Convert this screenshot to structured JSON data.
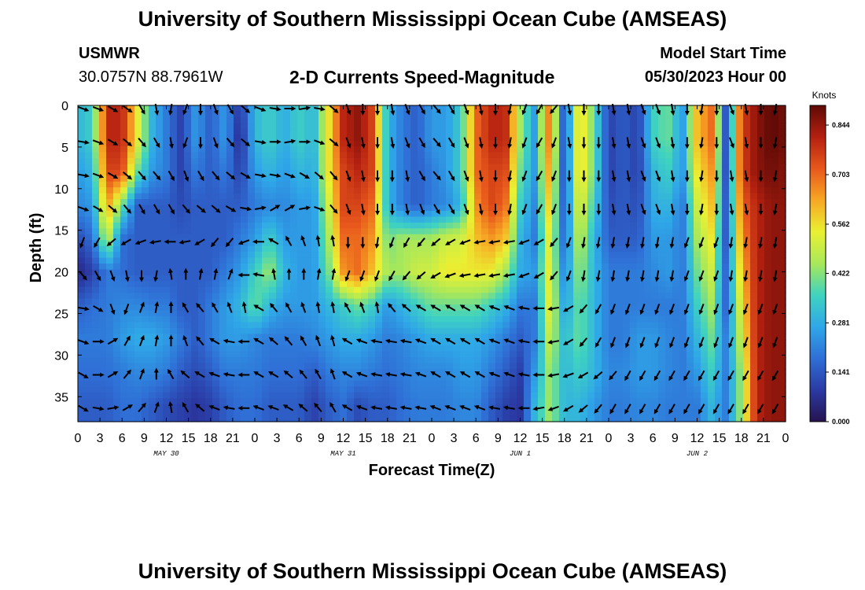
{
  "header": {
    "title": "University of Southern Mississippi Ocean Cube (AMSEAS)",
    "station": "USMWR",
    "coords": "30.0757N  88.7961W",
    "subtitle": "2-D Currents Speed-Magnitude",
    "model_start_label": "Model Start Time",
    "model_start_value": "05/30/2023 Hour 00"
  },
  "footer": {
    "title": "University of Southern Mississippi Ocean Cube (AMSEAS)"
  },
  "chart_data": {
    "type": "heatmap",
    "title": "2-D Currents Speed-Magnitude",
    "xlabel": "Forecast Time(Z)",
    "ylabel": "Depth (ft)",
    "x_tick_labels": [
      "0",
      "3",
      "6",
      "9",
      "12",
      "15",
      "18",
      "21",
      "0",
      "3",
      "6",
      "9",
      "12",
      "15",
      "18",
      "21",
      "0",
      "3",
      "6",
      "9",
      "12",
      "15",
      "18",
      "21",
      "0",
      "3",
      "6",
      "9",
      "12",
      "15",
      "18",
      "21",
      "0"
    ],
    "x_range_hours": [
      0,
      96
    ],
    "date_labels": [
      {
        "label": "MAY 30",
        "hour": 12
      },
      {
        "label": "MAY 31",
        "hour": 36
      },
      {
        "label": "JUN 1",
        "hour": 60
      },
      {
        "label": "JUN 2",
        "hour": 84
      }
    ],
    "y_ticks": [
      0,
      5,
      10,
      15,
      20,
      25,
      30,
      35
    ],
    "y_tick_labels": [
      "0",
      "5",
      "10",
      "15",
      "20",
      "25",
      "30",
      "35"
    ],
    "y_range_ft": [
      0,
      38
    ],
    "colorbar": {
      "unit": "Knots",
      "ticks": [
        0.0,
        0.141,
        0.281,
        0.422,
        0.562,
        0.703,
        0.844
      ],
      "tick_labels": [
        "0.000",
        "0.141",
        "0.281",
        "0.422",
        "0.562",
        "0.703",
        "0.844"
      ],
      "range": [
        0,
        0.9
      ],
      "colors": [
        "#26134f",
        "#2b3aa4",
        "#2f6fd6",
        "#2fa7e8",
        "#3fd3c0",
        "#a8e85a",
        "#eaf032",
        "#f7a824",
        "#e8581c",
        "#b42010",
        "#5e0a06"
      ]
    },
    "grid_times_hours": [
      0,
      2,
      4,
      6,
      8,
      10,
      12,
      14,
      16,
      18,
      20,
      22,
      24,
      26,
      28,
      30,
      32,
      34,
      36,
      38,
      40,
      42,
      44,
      46,
      48,
      50,
      52,
      54,
      56,
      58,
      60,
      62,
      64,
      66,
      68,
      70,
      72,
      74,
      76,
      78,
      80,
      82,
      84,
      86,
      88,
      90,
      92,
      94,
      96
    ],
    "grid_depths_ft": [
      0,
      4,
      8,
      12,
      16,
      20,
      24,
      28,
      32,
      36,
      38
    ],
    "speed_knots": [
      [
        0.3,
        0.35,
        0.8,
        0.8,
        0.55,
        0.3,
        0.2,
        0.1,
        0.25,
        0.15,
        0.25,
        0.08,
        0.3,
        0.35,
        0.28,
        0.35,
        0.3,
        0.55,
        0.8,
        0.85,
        0.75,
        0.3,
        0.2,
        0.15,
        0.25,
        0.25,
        0.35,
        0.7,
        0.8,
        0.8,
        0.45,
        0.25,
        0.7,
        0.1,
        0.6,
        0.4,
        0.1,
        0.15,
        0.1,
        0.35,
        0.4,
        0.25,
        0.6,
        0.7,
        0.1,
        0.75,
        0.85,
        0.9,
        0.88
      ],
      [
        0.3,
        0.35,
        0.8,
        0.8,
        0.55,
        0.3,
        0.2,
        0.1,
        0.25,
        0.15,
        0.25,
        0.05,
        0.3,
        0.35,
        0.28,
        0.35,
        0.3,
        0.55,
        0.8,
        0.85,
        0.75,
        0.3,
        0.2,
        0.15,
        0.25,
        0.25,
        0.35,
        0.7,
        0.8,
        0.8,
        0.45,
        0.25,
        0.7,
        0.1,
        0.6,
        0.4,
        0.1,
        0.15,
        0.1,
        0.35,
        0.4,
        0.25,
        0.6,
        0.7,
        0.1,
        0.75,
        0.85,
        0.9,
        0.88
      ],
      [
        0.25,
        0.3,
        0.75,
        0.75,
        0.4,
        0.25,
        0.2,
        0.1,
        0.2,
        0.15,
        0.2,
        0.1,
        0.25,
        0.3,
        0.25,
        0.3,
        0.28,
        0.55,
        0.75,
        0.8,
        0.75,
        0.3,
        0.2,
        0.15,
        0.2,
        0.25,
        0.35,
        0.7,
        0.75,
        0.75,
        0.4,
        0.25,
        0.65,
        0.1,
        0.6,
        0.4,
        0.1,
        0.15,
        0.1,
        0.3,
        0.35,
        0.25,
        0.55,
        0.65,
        0.1,
        0.75,
        0.85,
        0.88,
        0.86
      ],
      [
        0.22,
        0.25,
        0.65,
        0.4,
        0.15,
        0.15,
        0.15,
        0.12,
        0.15,
        0.15,
        0.15,
        0.15,
        0.2,
        0.22,
        0.22,
        0.25,
        0.25,
        0.5,
        0.75,
        0.75,
        0.7,
        0.3,
        0.2,
        0.15,
        0.2,
        0.22,
        0.3,
        0.65,
        0.75,
        0.7,
        0.35,
        0.22,
        0.6,
        0.12,
        0.55,
        0.35,
        0.12,
        0.15,
        0.12,
        0.28,
        0.3,
        0.2,
        0.5,
        0.6,
        0.12,
        0.7,
        0.8,
        0.85,
        0.85
      ],
      [
        0.12,
        0.18,
        0.5,
        0.18,
        0.15,
        0.15,
        0.15,
        0.15,
        0.15,
        0.15,
        0.15,
        0.2,
        0.25,
        0.35,
        0.25,
        0.25,
        0.25,
        0.45,
        0.7,
        0.7,
        0.65,
        0.4,
        0.45,
        0.45,
        0.45,
        0.5,
        0.5,
        0.6,
        0.65,
        0.6,
        0.3,
        0.2,
        0.55,
        0.15,
        0.5,
        0.3,
        0.15,
        0.15,
        0.15,
        0.25,
        0.25,
        0.2,
        0.45,
        0.55,
        0.12,
        0.65,
        0.8,
        0.85,
        0.85
      ],
      [
        0.05,
        0.1,
        0.2,
        0.18,
        0.15,
        0.15,
        0.15,
        0.15,
        0.15,
        0.15,
        0.2,
        0.25,
        0.35,
        0.45,
        0.3,
        0.25,
        0.25,
        0.4,
        0.65,
        0.7,
        0.6,
        0.45,
        0.45,
        0.5,
        0.5,
        0.55,
        0.55,
        0.55,
        0.55,
        0.45,
        0.28,
        0.25,
        0.55,
        0.2,
        0.45,
        0.3,
        0.2,
        0.2,
        0.2,
        0.22,
        0.25,
        0.2,
        0.4,
        0.5,
        0.15,
        0.6,
        0.8,
        0.85,
        0.85
      ],
      [
        0.15,
        0.18,
        0.2,
        0.22,
        0.22,
        0.2,
        0.2,
        0.15,
        0.15,
        0.2,
        0.25,
        0.3,
        0.4,
        0.3,
        0.25,
        0.25,
        0.25,
        0.3,
        0.35,
        0.4,
        0.35,
        0.25,
        0.3,
        0.35,
        0.4,
        0.4,
        0.4,
        0.4,
        0.35,
        0.3,
        0.2,
        0.2,
        0.55,
        0.25,
        0.4,
        0.3,
        0.2,
        0.2,
        0.2,
        0.2,
        0.2,
        0.2,
        0.35,
        0.45,
        0.15,
        0.55,
        0.8,
        0.85,
        0.85
      ],
      [
        0.2,
        0.2,
        0.2,
        0.25,
        0.28,
        0.28,
        0.25,
        0.2,
        0.15,
        0.2,
        0.25,
        0.25,
        0.22,
        0.2,
        0.2,
        0.2,
        0.22,
        0.25,
        0.28,
        0.28,
        0.25,
        0.2,
        0.22,
        0.25,
        0.28,
        0.28,
        0.28,
        0.28,
        0.25,
        0.2,
        0.15,
        0.2,
        0.5,
        0.3,
        0.4,
        0.3,
        0.2,
        0.2,
        0.25,
        0.25,
        0.22,
        0.2,
        0.3,
        0.4,
        0.2,
        0.5,
        0.8,
        0.85,
        0.85
      ],
      [
        0.18,
        0.18,
        0.18,
        0.2,
        0.22,
        0.22,
        0.2,
        0.15,
        0.12,
        0.15,
        0.2,
        0.2,
        0.2,
        0.18,
        0.18,
        0.18,
        0.15,
        0.2,
        0.22,
        0.22,
        0.2,
        0.18,
        0.2,
        0.22,
        0.22,
        0.22,
        0.25,
        0.25,
        0.2,
        0.15,
        0.1,
        0.25,
        0.45,
        0.3,
        0.35,
        0.3,
        0.22,
        0.22,
        0.25,
        0.25,
        0.22,
        0.2,
        0.25,
        0.35,
        0.2,
        0.45,
        0.8,
        0.85,
        0.85
      ],
      [
        0.15,
        0.15,
        0.15,
        0.18,
        0.18,
        0.15,
        0.12,
        0.1,
        0.08,
        0.1,
        0.15,
        0.18,
        0.18,
        0.15,
        0.15,
        0.15,
        0.1,
        0.15,
        0.18,
        0.12,
        0.15,
        0.15,
        0.18,
        0.2,
        0.2,
        0.2,
        0.22,
        0.22,
        0.15,
        0.1,
        0.08,
        0.3,
        0.45,
        0.3,
        0.3,
        0.25,
        0.2,
        0.2,
        0.22,
        0.22,
        0.2,
        0.2,
        0.2,
        0.3,
        0.2,
        0.45,
        0.8,
        0.85,
        0.85
      ],
      [
        0.15,
        0.15,
        0.15,
        0.18,
        0.18,
        0.15,
        0.12,
        0.1,
        0.08,
        0.1,
        0.15,
        0.18,
        0.18,
        0.15,
        0.15,
        0.15,
        0.1,
        0.15,
        0.18,
        0.12,
        0.15,
        0.15,
        0.18,
        0.2,
        0.2,
        0.2,
        0.22,
        0.22,
        0.15,
        0.1,
        0.08,
        0.3,
        0.45,
        0.3,
        0.3,
        0.25,
        0.2,
        0.2,
        0.22,
        0.22,
        0.2,
        0.2,
        0.2,
        0.3,
        0.2,
        0.45,
        0.8,
        0.85,
        0.85
      ]
    ],
    "vector_rows_depth_ft": [
      0,
      4,
      8,
      12,
      16,
      20,
      24,
      28,
      32,
      36
    ],
    "vector_cols_hours": [
      0,
      2,
      4,
      6,
      8,
      10,
      12,
      14,
      16,
      18,
      20,
      22,
      24,
      26,
      28,
      30,
      32,
      34,
      36,
      38,
      40,
      42,
      44,
      46,
      48,
      50,
      52,
      54,
      56,
      58,
      60,
      62,
      64,
      66,
      68,
      70,
      72,
      74,
      76,
      78,
      80,
      82,
      84,
      86,
      88,
      90,
      92,
      94
    ],
    "vector_directions_deg_from_north": [
      [
        110,
        110,
        120,
        125,
        150,
        170,
        190,
        200,
        180,
        160,
        150,
        130,
        110,
        100,
        90,
        80,
        100,
        130,
        160,
        180,
        180,
        170,
        160,
        150,
        140,
        150,
        160,
        170,
        180,
        190,
        200,
        210,
        220,
        170,
        180,
        180,
        170,
        170,
        160,
        160,
        170,
        180,
        190,
        180,
        160,
        170,
        180,
        190
      ],
      [
        100,
        110,
        120,
        130,
        140,
        150,
        170,
        200,
        180,
        160,
        140,
        130,
        100,
        90,
        80,
        90,
        110,
        130,
        160,
        170,
        180,
        170,
        160,
        150,
        140,
        150,
        160,
        170,
        180,
        190,
        200,
        210,
        200,
        170,
        180,
        180,
        170,
        170,
        160,
        160,
        170,
        180,
        190,
        180,
        160,
        170,
        180,
        190
      ],
      [
        100,
        110,
        120,
        130,
        140,
        140,
        150,
        160,
        150,
        140,
        130,
        120,
        100,
        100,
        110,
        120,
        130,
        140,
        160,
        170,
        180,
        180,
        170,
        150,
        140,
        150,
        160,
        170,
        180,
        190,
        200,
        210,
        200,
        180,
        180,
        180,
        170,
        170,
        160,
        160,
        170,
        180,
        190,
        180,
        170,
        170,
        180,
        190
      ],
      [
        110,
        120,
        130,
        140,
        150,
        150,
        150,
        140,
        130,
        130,
        120,
        100,
        80,
        60,
        60,
        80,
        110,
        140,
        160,
        170,
        180,
        180,
        170,
        160,
        150,
        150,
        160,
        170,
        180,
        190,
        200,
        210,
        200,
        180,
        180,
        180,
        170,
        170,
        160,
        160,
        170,
        180,
        190,
        180,
        170,
        170,
        180,
        190
      ],
      [
        200,
        210,
        230,
        240,
        250,
        260,
        270,
        260,
        240,
        220,
        220,
        250,
        270,
        300,
        330,
        340,
        350,
        350,
        180,
        180,
        190,
        200,
        210,
        220,
        230,
        240,
        250,
        260,
        260,
        260,
        250,
        240,
        220,
        200,
        190,
        190,
        190,
        190,
        190,
        190,
        190,
        200,
        200,
        200,
        190,
        190,
        190,
        190
      ],
      [
        140,
        150,
        160,
        170,
        180,
        190,
        350,
        0,
        10,
        10,
        20,
        270,
        280,
        350,
        0,
        0,
        10,
        10,
        200,
        200,
        200,
        210,
        220,
        230,
        240,
        250,
        260,
        260,
        260,
        260,
        250,
        240,
        220,
        200,
        190,
        190,
        190,
        190,
        190,
        190,
        190,
        200,
        200,
        200,
        190,
        190,
        190,
        190
      ],
      [
        100,
        120,
        160,
        200,
        20,
        10,
        0,
        330,
        320,
        330,
        340,
        350,
        300,
        320,
        330,
        340,
        350,
        350,
        330,
        340,
        350,
        320,
        310,
        300,
        300,
        300,
        300,
        300,
        290,
        290,
        280,
        270,
        260,
        240,
        220,
        210,
        200,
        200,
        200,
        200,
        200,
        200,
        200,
        200,
        200,
        200,
        200,
        200
      ],
      [
        110,
        90,
        60,
        30,
        20,
        10,
        0,
        340,
        320,
        300,
        280,
        270,
        300,
        310,
        320,
        330,
        340,
        345,
        300,
        290,
        280,
        280,
        280,
        290,
        300,
        300,
        300,
        300,
        290,
        290,
        280,
        270,
        260,
        240,
        220,
        210,
        200,
        200,
        200,
        200,
        200,
        200,
        200,
        200,
        200,
        200,
        200,
        200
      ],
      [
        120,
        90,
        60,
        40,
        20,
        0,
        330,
        310,
        300,
        290,
        280,
        270,
        300,
        300,
        310,
        320,
        330,
        340,
        300,
        290,
        280,
        280,
        280,
        290,
        300,
        300,
        300,
        300,
        290,
        290,
        280,
        270,
        260,
        250,
        240,
        230,
        220,
        210,
        210,
        210,
        210,
        210,
        210,
        210,
        210,
        210,
        210,
        210
      ],
      [
        120,
        100,
        80,
        60,
        40,
        20,
        350,
        330,
        310,
        290,
        280,
        270,
        290,
        290,
        300,
        310,
        320,
        330,
        300,
        290,
        280,
        280,
        280,
        280,
        290,
        290,
        290,
        290,
        280,
        280,
        270,
        260,
        250,
        240,
        230,
        220,
        210,
        210,
        210,
        210,
        210,
        210,
        210,
        210,
        210,
        210,
        210,
        210
      ]
    ]
  }
}
